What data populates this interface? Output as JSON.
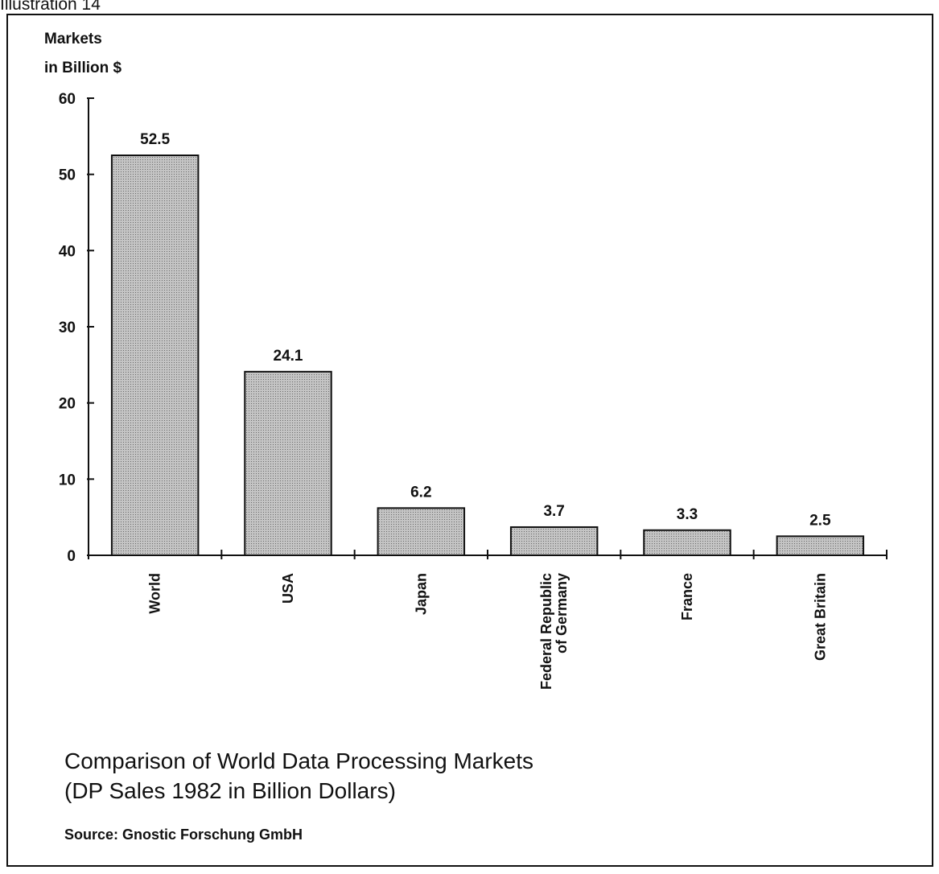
{
  "illustration_label": "Illustration 14",
  "chart_data": {
    "type": "bar",
    "title": "Comparison of World Data Processing Markets",
    "subtitle": "(DP Sales 1982 in Billion Dollars)",
    "ylabel_lines": [
      "Markets",
      "in Billion $"
    ],
    "xlabel": "",
    "categories": [
      "World",
      "USA",
      "Japan",
      "Federal Republic\nof Germany",
      "France",
      "Great Britain"
    ],
    "values": [
      52.5,
      24.1,
      6.2,
      3.7,
      3.3,
      2.5
    ],
    "value_labels": [
      "52.5",
      "24.1",
      "6.2",
      "3.7",
      "3.3",
      "2.5"
    ],
    "ylim": [
      0,
      60
    ],
    "yticks": [
      0,
      10,
      20,
      30,
      40,
      50,
      60
    ],
    "grid": false,
    "legend": "none",
    "bar_fill": "#b8b8b8",
    "axis_color": "#111111"
  },
  "source": "Source: Gnostic Forschung GmbH"
}
